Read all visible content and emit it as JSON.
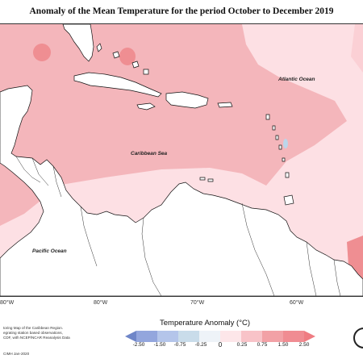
{
  "title": "Anomaly of the Mean Temperature for the period October to December 2019",
  "map": {
    "labels": {
      "atlantic": "Atlantic Ocean",
      "caribbean": "Caribbean Sea",
      "pacific": "Pacific Ocean"
    },
    "longitudes": [
      "80°W",
      "80°W",
      "70°W",
      "60°W"
    ],
    "fill_colors": {
      "light_pink": "#fde0e4",
      "mid_pink": "#f4b6bb",
      "dark_pink": "#ef8e92",
      "pale_blue": "#bcd6ea",
      "land": "#ffffff"
    }
  },
  "legend": {
    "title": "Temperature Anomaly (°C)",
    "ticks": [
      "-2.50",
      "-1.50",
      "-0.75",
      "-0.25",
      "0",
      "0.25",
      "0.75",
      "1.50",
      "2.50"
    ],
    "colors": [
      "#6f86c8",
      "#93a6dd",
      "#b4c5ea",
      "#c9dcea",
      "#ffffff",
      "#fde6e9",
      "#f8c3c8",
      "#f2a1a6",
      "#ef7c82"
    ]
  },
  "credit": {
    "lines": [
      "toring Map of the Caribbean Region.",
      "egrating station based observations,",
      "CDF, with NCEP/NCAR Reanalysis Data"
    ],
    "date": "CIMH Jan-2020"
  }
}
